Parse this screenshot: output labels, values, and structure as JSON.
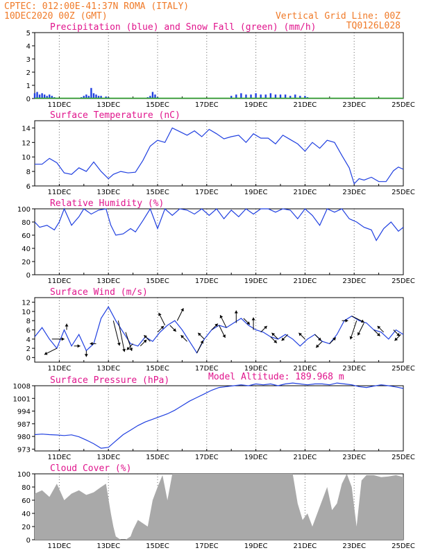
{
  "header": {
    "line1": "CPTEC:   012:00E-41:37N   ROMA (ITALY)",
    "line2": "10DEC2020 00Z (GMT)",
    "right1": "Vertical Grid Line: 00Z",
    "right2": "TQ0126L028"
  },
  "model_altitude": "Model Altitude: 189.968 m",
  "colors": {
    "header": "#f07a28",
    "title": "#e0148c",
    "line": "#1f3fe0",
    "snow": "#2ea82e",
    "cloud": "#a9a9a9",
    "arrow": "#000000"
  },
  "chart_data": [
    {
      "type": "bar",
      "title": "Precipitation (blue) and Snow Fall (green) (mm/h)",
      "xlabel": "",
      "ylabel": "",
      "x_ticks": [
        "11DEC",
        "13DEC",
        "15DEC",
        "17DEC",
        "19DEC",
        "21DEC",
        "23DEC",
        "25DEC"
      ],
      "ylim": [
        0,
        5
      ],
      "y_ticks": [
        "0",
        "1",
        "2",
        "3",
        "4",
        "5"
      ],
      "series": [
        {
          "name": "Precipitation",
          "x": [
            10.0,
            10.1,
            10.2,
            10.3,
            10.4,
            10.5,
            10.6,
            10.7,
            10.8,
            11.0,
            11.6,
            11.9,
            12.0,
            12.1,
            12.2,
            12.3,
            12.4,
            12.5,
            12.6,
            12.7,
            12.9,
            13.0,
            13.1,
            13.2,
            14.6,
            14.7,
            14.8,
            14.9,
            15.0,
            18.0,
            18.2,
            18.4,
            18.6,
            18.8,
            19.0,
            19.2,
            19.4,
            19.6,
            19.8,
            20.0,
            20.2,
            20.4,
            20.6,
            20.8,
            21.0,
            21.1
          ],
          "values": [
            0.4,
            0.5,
            0.3,
            0.4,
            0.3,
            0.2,
            0.3,
            0.2,
            0.1,
            0.05,
            0.05,
            0.1,
            0.2,
            0.3,
            0.2,
            0.8,
            0.4,
            0.3,
            0.2,
            0.2,
            0.15,
            0.1,
            0.05,
            0.05,
            0.1,
            0.2,
            0.5,
            0.3,
            0.1,
            0.2,
            0.3,
            0.4,
            0.3,
            0.3,
            0.4,
            0.3,
            0.3,
            0.4,
            0.3,
            0.3,
            0.3,
            0.2,
            0.3,
            0.2,
            0.2,
            0.1
          ]
        },
        {
          "name": "Snow Fall",
          "x": [],
          "values": []
        }
      ]
    },
    {
      "type": "line",
      "title": "Surface Temperature (nC)",
      "x_ticks": [
        "11DEC",
        "13DEC",
        "15DEC",
        "17DEC",
        "19DEC",
        "21DEC",
        "23DEC",
        "25DEC"
      ],
      "ylim": [
        6,
        15
      ],
      "y_ticks": [
        "6",
        "8",
        "10",
        "12",
        "14"
      ],
      "x": [
        10.0,
        10.3,
        10.6,
        10.9,
        11.2,
        11.5,
        11.8,
        12.1,
        12.4,
        12.7,
        13.0,
        13.2,
        13.5,
        13.8,
        14.1,
        14.4,
        14.7,
        15.0,
        15.3,
        15.6,
        15.9,
        16.2,
        16.5,
        16.8,
        17.1,
        17.4,
        17.7,
        18.0,
        18.3,
        18.6,
        18.9,
        19.2,
        19.5,
        19.8,
        20.1,
        20.4,
        20.7,
        21.0,
        21.3,
        21.6,
        21.9,
        22.2,
        22.5,
        22.8,
        23.0,
        23.2,
        23.4,
        23.7,
        24.0,
        24.3,
        24.6,
        24.8,
        25.0
      ],
      "values": [
        9.0,
        9.0,
        9.8,
        9.2,
        7.8,
        7.6,
        8.5,
        8.0,
        9.3,
        8.0,
        7.0,
        7.6,
        8.0,
        7.8,
        7.9,
        9.5,
        11.5,
        12.3,
        12.0,
        14.0,
        13.5,
        13.0,
        13.6,
        12.8,
        13.8,
        13.2,
        12.5,
        12.8,
        13.0,
        12.0,
        13.2,
        12.6,
        12.6,
        11.8,
        13.0,
        12.4,
        11.8,
        10.8,
        12.0,
        11.2,
        12.3,
        12.0,
        10.2,
        8.5,
        6.3,
        7.0,
        6.8,
        7.2,
        6.6,
        6.6,
        8.1,
        8.6,
        8.3
      ]
    },
    {
      "type": "line",
      "title": "Relative Humidity (%)",
      "x_ticks": [
        "11DEC",
        "13DEC",
        "15DEC",
        "17DEC",
        "19DEC",
        "21DEC",
        "23DEC",
        "25DEC"
      ],
      "ylim": [
        0,
        100
      ],
      "y_ticks": [
        "0",
        "20",
        "40",
        "60",
        "80",
        "100"
      ],
      "x": [
        10.0,
        10.2,
        10.5,
        10.8,
        11.0,
        11.2,
        11.5,
        11.8,
        12.0,
        12.3,
        12.6,
        12.9,
        13.1,
        13.3,
        13.6,
        13.9,
        14.1,
        14.4,
        14.7,
        15.0,
        15.3,
        15.6,
        15.9,
        16.2,
        16.5,
        16.8,
        17.1,
        17.4,
        17.7,
        18.0,
        18.3,
        18.6,
        18.9,
        19.2,
        19.5,
        19.8,
        20.1,
        20.4,
        20.7,
        21.0,
        21.3,
        21.6,
        21.9,
        22.2,
        22.5,
        22.8,
        23.1,
        23.4,
        23.7,
        23.9,
        24.2,
        24.5,
        24.8,
        25.0
      ],
      "values": [
        80,
        72,
        75,
        68,
        80,
        100,
        75,
        88,
        100,
        92,
        98,
        100,
        75,
        60,
        62,
        70,
        65,
        82,
        100,
        70,
        100,
        90,
        100,
        98,
        92,
        100,
        90,
        100,
        85,
        98,
        88,
        100,
        92,
        100,
        100,
        95,
        100,
        98,
        85,
        100,
        90,
        75,
        100,
        95,
        100,
        85,
        80,
        72,
        68,
        52,
        70,
        80,
        66,
        72
      ]
    },
    {
      "type": "line",
      "title": "Surface Wind (m/s)",
      "x_ticks": [
        "11DEC",
        "13DEC",
        "15DEC",
        "17DEC",
        "19DEC",
        "21DEC",
        "23DEC",
        "25DEC"
      ],
      "ylim": [
        -1,
        13
      ],
      "y_ticks": [
        "0",
        "2",
        "4",
        "6",
        "8",
        "10",
        "12"
      ],
      "x": [
        10.0,
        10.3,
        10.6,
        10.9,
        11.2,
        11.5,
        11.8,
        12.1,
        12.4,
        12.7,
        13.0,
        13.3,
        13.6,
        13.9,
        14.2,
        14.5,
        14.8,
        15.1,
        15.4,
        15.7,
        16.0,
        16.3,
        16.6,
        16.9,
        17.2,
        17.5,
        17.8,
        18.1,
        18.4,
        18.7,
        19.0,
        19.3,
        19.6,
        19.9,
        20.2,
        20.5,
        20.8,
        21.1,
        21.4,
        21.7,
        22.0,
        22.3,
        22.6,
        22.9,
        23.2,
        23.5,
        23.8,
        24.1,
        24.4,
        24.7,
        25.0
      ],
      "values": [
        4.5,
        6.5,
        4.0,
        2.0,
        6.0,
        2.5,
        5.0,
        1.5,
        3.0,
        8.5,
        11.0,
        8.0,
        5.5,
        3.0,
        2.5,
        4.5,
        3.5,
        5.5,
        7.0,
        8.0,
        6.0,
        3.5,
        1.0,
        4.0,
        6.0,
        7.0,
        6.5,
        7.5,
        8.5,
        7.0,
        6.0,
        5.5,
        4.5,
        4.0,
        5.0,
        4.0,
        2.5,
        4.0,
        5.0,
        3.5,
        3.0,
        5.0,
        8.0,
        9.0,
        8.0,
        7.5,
        6.0,
        5.5,
        4.0,
        6.0,
        5.0
      ],
      "arrows": {
        "x": [
          10.7,
          10.9,
          11.3,
          11.6,
          12.1,
          12.5,
          13.2,
          13.4,
          13.7,
          14.0,
          14.3,
          14.7,
          15.0,
          15.3,
          15.5,
          15.8,
          16.2,
          16.6,
          16.9,
          17.2,
          17.5,
          17.8,
          18.2,
          18.5,
          18.9,
          19.2,
          19.6,
          19.9,
          20.3,
          20.6,
          21.0,
          21.4,
          21.7,
          22.0,
          22.5,
          22.9,
          23.1,
          23.4,
          23.8,
          24.2,
          24.6,
          24.9
        ],
        "u": [
          2,
          -2,
          0,
          1,
          0,
          -1,
          1,
          1,
          1,
          -1,
          1,
          -1,
          1,
          -1,
          1,
          1,
          -1,
          1,
          -1,
          1,
          1,
          -1,
          0,
          1,
          0,
          1,
          1,
          -1,
          -1,
          0,
          -1,
          1,
          -1,
          1,
          1,
          2,
          -1,
          -1,
          1,
          -1,
          1,
          -1
        ],
        "v": [
          0,
          -1,
          1,
          0,
          -1,
          0,
          -4,
          -5,
          -3,
          -1,
          1,
          1,
          1,
          2,
          -1,
          2,
          1,
          2,
          1,
          1,
          -2,
          2,
          2,
          -1,
          2,
          1,
          -1,
          1,
          -1,
          0,
          1,
          -1,
          -1,
          1,
          0,
          -1,
          -3,
          -2,
          -1,
          1,
          -1,
          -1
        ]
      }
    },
    {
      "type": "line",
      "title": "Surface Pressure (hPa)",
      "x_ticks": [
        "11DEC",
        "13DEC",
        "15DEC",
        "17DEC",
        "19DEC",
        "21DEC",
        "23DEC",
        "25DEC"
      ],
      "ylim": [
        972,
        1008
      ],
      "y_ticks": [
        "973",
        "980",
        "987",
        "994",
        "1001",
        "1008"
      ],
      "x": [
        10.0,
        10.3,
        10.6,
        10.9,
        11.2,
        11.5,
        11.8,
        12.1,
        12.4,
        12.7,
        13.0,
        13.3,
        13.6,
        13.9,
        14.2,
        14.5,
        14.8,
        15.1,
        15.4,
        15.7,
        16.0,
        16.3,
        16.6,
        16.9,
        17.2,
        17.5,
        17.8,
        18.1,
        18.4,
        18.7,
        19.0,
        19.3,
        19.6,
        19.9,
        20.2,
        20.5,
        20.8,
        21.1,
        21.4,
        21.7,
        22.0,
        22.3,
        22.6,
        22.9,
        23.2,
        23.5,
        23.8,
        24.1,
        24.4,
        24.7,
        25.0
      ],
      "values": [
        981,
        981.3,
        981,
        980.8,
        980.5,
        980.9,
        979.8,
        978,
        976,
        973.5,
        974,
        977.5,
        981,
        983.5,
        986,
        988,
        989.5,
        991,
        992.5,
        994.5,
        997,
        999.5,
        1001.5,
        1003.5,
        1005.5,
        1007,
        1007.5,
        1008,
        1008.5,
        1008,
        1009,
        1008.5,
        1009,
        1008,
        1009,
        1009.5,
        1009,
        1008.5,
        1009,
        1009,
        1008.5,
        1009.5,
        1009,
        1008.5,
        1007.5,
        1007,
        1007.8,
        1008.5,
        1008,
        1007.3,
        1006.5
      ]
    },
    {
      "type": "area",
      "title": "Cloud Cover (%)",
      "x_ticks": [
        "11DEC",
        "13DEC",
        "15DEC",
        "17DEC",
        "19DEC",
        "21DEC",
        "23DEC",
        "25DEC"
      ],
      "ylim": [
        0,
        100
      ],
      "y_ticks": [
        "0",
        "20",
        "40",
        "60",
        "80",
        "100"
      ],
      "x": [
        10.0,
        10.3,
        10.6,
        10.9,
        11.2,
        11.5,
        11.8,
        12.1,
        12.4,
        12.7,
        12.9,
        13.1,
        13.2,
        13.3,
        13.5,
        13.7,
        13.9,
        14.0,
        14.2,
        14.4,
        14.6,
        14.8,
        15.0,
        15.2,
        15.4,
        15.6,
        15.8,
        16.0,
        16.3,
        16.6,
        16.9,
        17.2,
        17.5,
        17.8,
        18.1,
        18.4,
        18.7,
        19.0,
        19.3,
        19.6,
        19.9,
        20.2,
        20.5,
        20.7,
        20.9,
        21.1,
        21.3,
        21.6,
        21.9,
        22.1,
        22.3,
        22.5,
        22.7,
        22.9,
        23.1,
        23.3,
        23.5,
        23.8,
        24.1,
        24.4,
        24.7,
        25.0
      ],
      "values": [
        70,
        75,
        65,
        85,
        60,
        70,
        75,
        68,
        72,
        80,
        85,
        40,
        20,
        5,
        0,
        0,
        5,
        15,
        30,
        25,
        20,
        60,
        80,
        98,
        60,
        100,
        100,
        100,
        100,
        100,
        100,
        100,
        100,
        100,
        100,
        100,
        100,
        100,
        100,
        100,
        100,
        100,
        100,
        55,
        30,
        40,
        20,
        50,
        80,
        45,
        55,
        85,
        100,
        80,
        20,
        90,
        98,
        98,
        95,
        96,
        98,
        95
      ]
    }
  ]
}
